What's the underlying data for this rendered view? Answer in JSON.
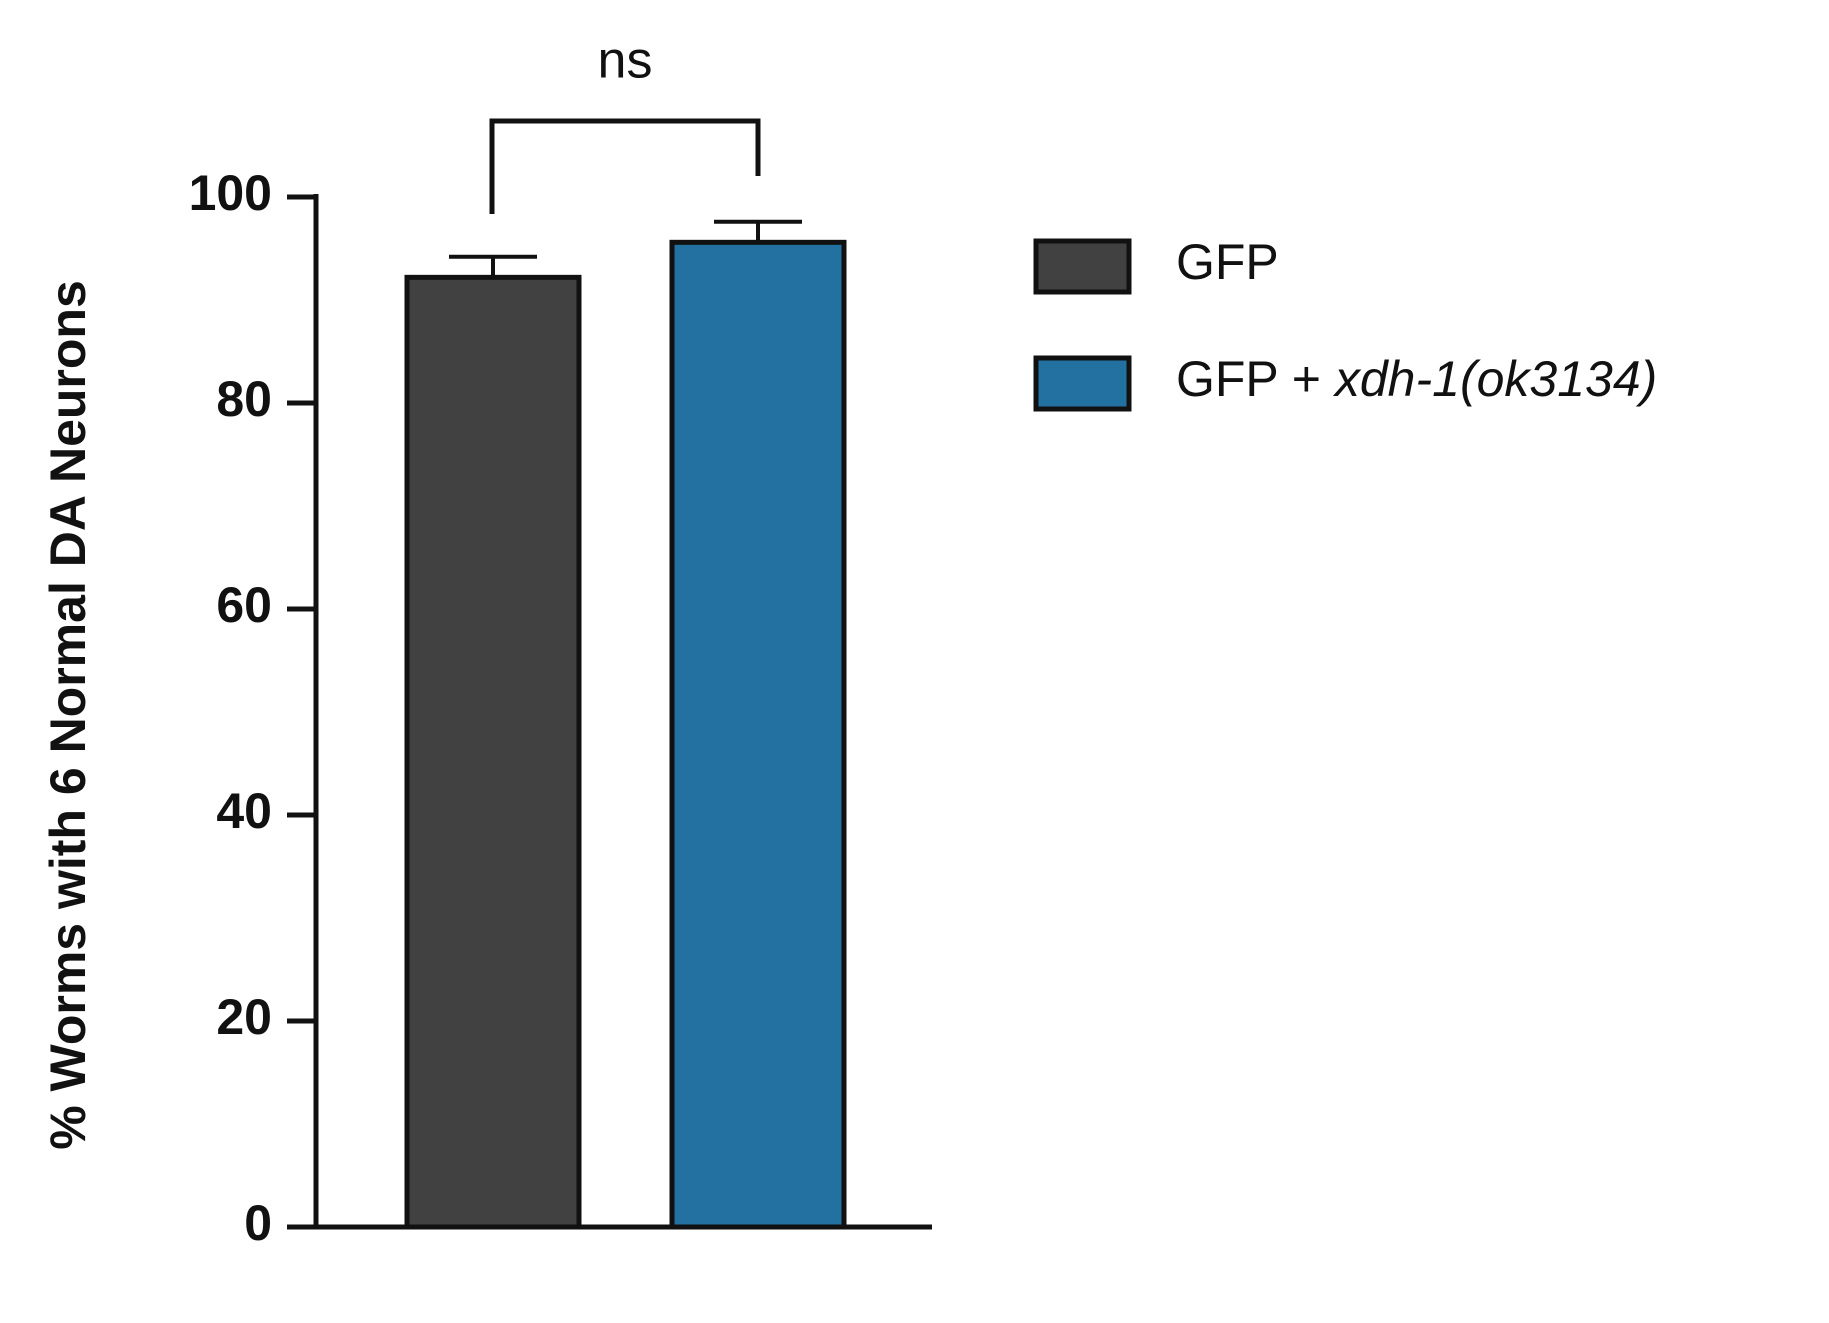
{
  "chart_data": {
    "type": "bar",
    "y_label": "% Worms with 6 Normal DA Neurons",
    "categories": [
      null
    ],
    "series": [
      {
        "name": "GFP",
        "color": "#414141",
        "values": [
          92.2
        ],
        "errors": [
          2
        ]
      },
      {
        "name": "GFP + xdh-1(ok3134)",
        "color": "#2271a1",
        "values": [
          95.6
        ],
        "errors": [
          2
        ]
      }
    ],
    "ylim": [
      0,
      100
    ],
    "yticks": [
      0,
      20,
      40,
      60,
      80,
      100
    ],
    "annotations": [
      {
        "text": "ns"
      }
    ]
  }
}
